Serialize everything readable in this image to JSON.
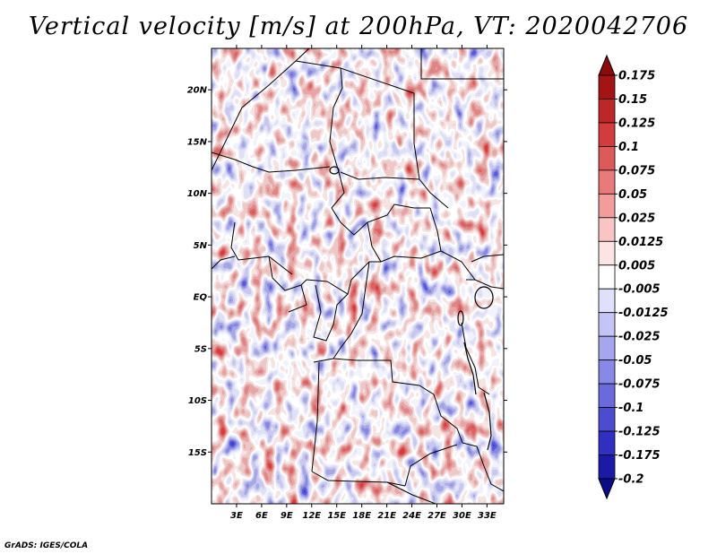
{
  "title": "Vertical velocity [m/s] at 200hPa, VT: 2020042706",
  "credit": "GrADS: IGES/COLA",
  "map": {
    "lon_range": [
      0,
      35
    ],
    "lat_range": [
      -20,
      24
    ],
    "lat_labels": [
      "20N",
      "15N",
      "10N",
      "5N",
      "EQ",
      "5S",
      "10S",
      "15S"
    ],
    "lat_values": [
      20,
      15,
      10,
      5,
      0,
      -5,
      -10,
      -15
    ],
    "lon_labels": [
      "3E",
      "6E",
      "9E",
      "12E",
      "15E",
      "18E",
      "21E",
      "24E",
      "27E",
      "30E",
      "33E"
    ],
    "lon_values": [
      3,
      6,
      9,
      12,
      15,
      18,
      21,
      24,
      27,
      30,
      33
    ]
  },
  "colorbar": {
    "levels": [
      "0.175",
      "0.15",
      "0.125",
      "0.1",
      "0.075",
      "0.05",
      "0.025",
      "0.0125",
      "0.005",
      "-0.005",
      "-0.0125",
      "-0.025",
      "-0.05",
      "-0.075",
      "-0.1",
      "-0.125",
      "-0.175",
      "-0.2"
    ],
    "colors": [
      "#8c0a0a",
      "#a41414",
      "#bc2828",
      "#d23c3c",
      "#dc5a5a",
      "#e87a7a",
      "#f29c9c",
      "#f8c4c4",
      "#fde4e4",
      "#ffffff",
      "#e0e0fb",
      "#c4c4f6",
      "#a6a6ee",
      "#8888e6",
      "#6a6adc",
      "#4c4cd0",
      "#3030c0",
      "#1a1aa6",
      "#0c0c8a"
    ]
  }
}
